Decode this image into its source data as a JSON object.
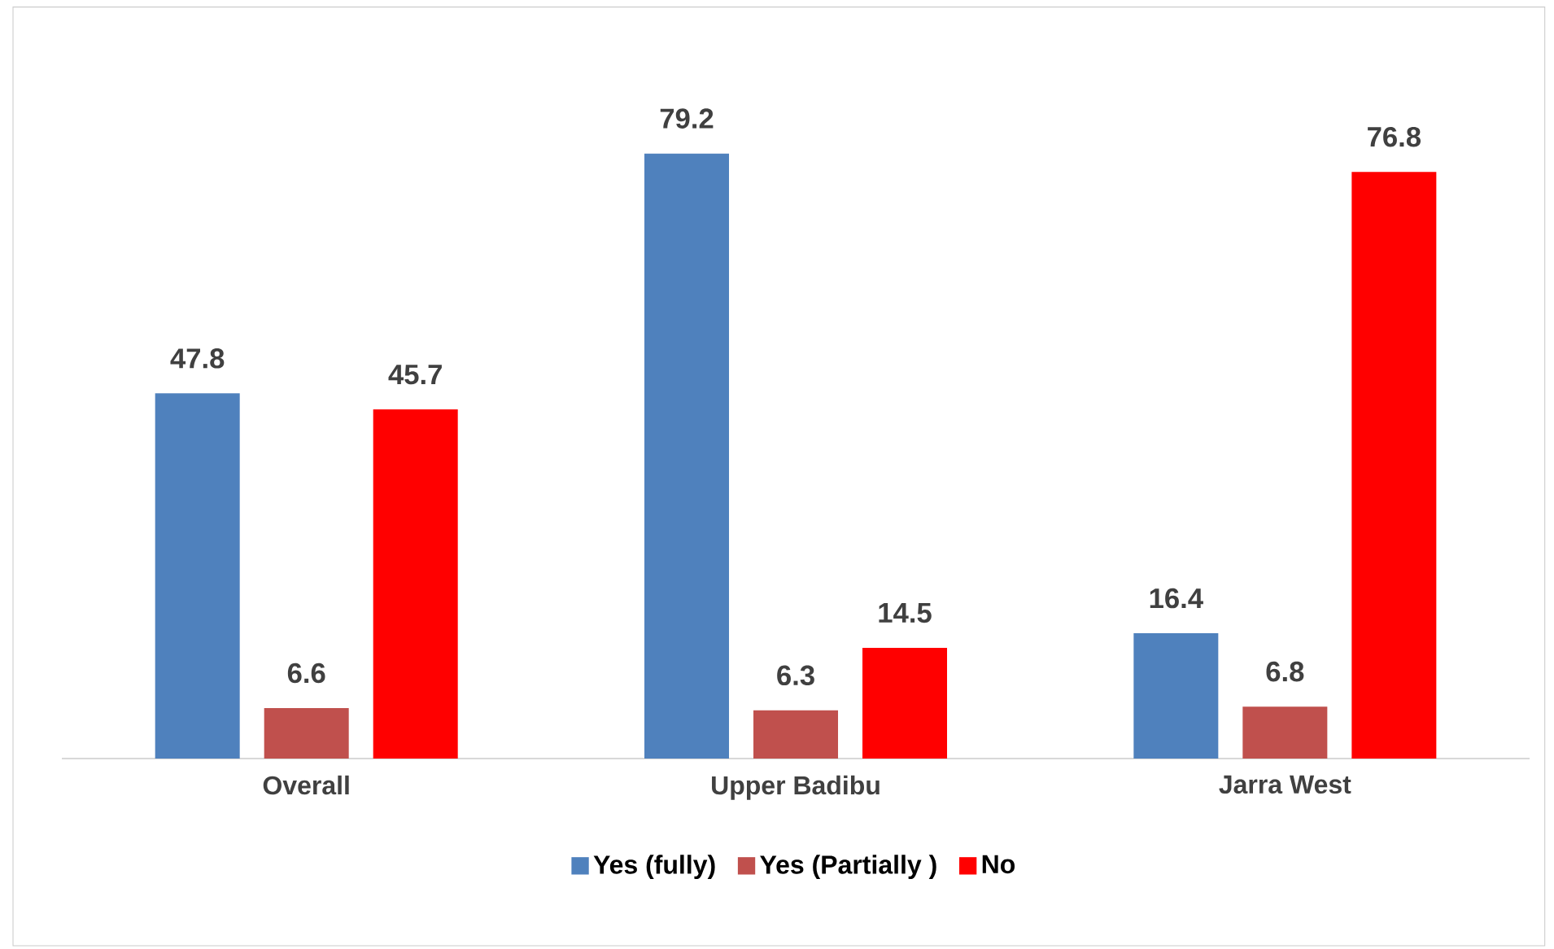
{
  "chart_data": {
    "type": "bar",
    "categories": [
      "Overall",
      "Upper Badibu",
      "Jarra West"
    ],
    "series": [
      {
        "name": "Yes (fully)",
        "color": "#4f81bd",
        "values": [
          47.8,
          79.2,
          16.4
        ]
      },
      {
        "name": "Yes (Partially )",
        "color": "#c0504d",
        "values": [
          6.6,
          6.3,
          6.8
        ]
      },
      {
        "name": "No",
        "color": "#ff0000",
        "values": [
          45.7,
          14.5,
          76.8
        ]
      }
    ],
    "data_labels": true,
    "legend": "bottom"
  }
}
